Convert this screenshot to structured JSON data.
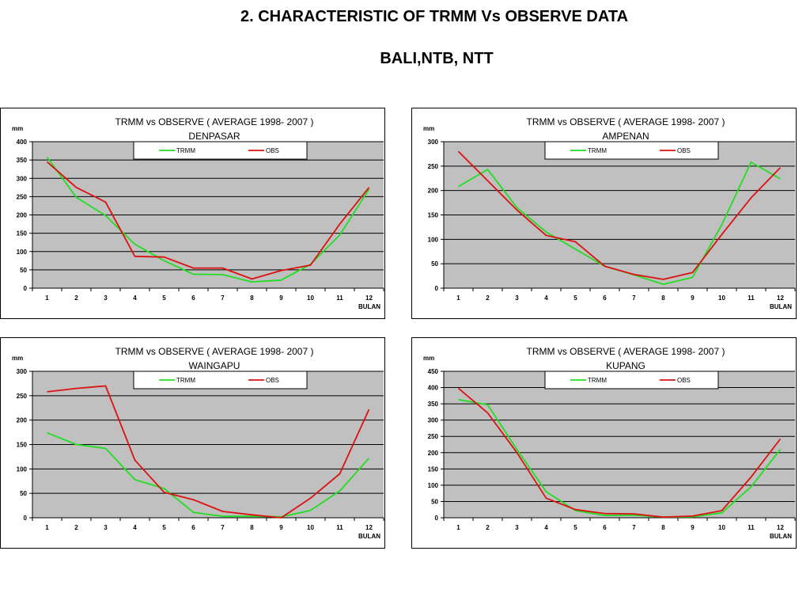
{
  "slide": {
    "title": "2.  CHARACTERISTIC OF TRMM Vs OBSERVE DATA",
    "subtitle": "BALI,NTB, NTT"
  },
  "colors": {
    "trmm": "#22dd22",
    "obs": "#dd1111",
    "plot_bg": "#c0c0c0"
  },
  "chart_data": [
    {
      "type": "line",
      "title": "TRMM  vs  OBSERVE  ( AVERAGE  1998- 2007 )",
      "subtitle": "DENPASAR",
      "ylabel": "mm",
      "xlabel": "BULAN",
      "categories": [
        "1",
        "2",
        "3",
        "4",
        "5",
        "6",
        "7",
        "8",
        "9",
        "10",
        "11",
        "12"
      ],
      "ylim": [
        0,
        400
      ],
      "yticks": [
        0,
        50,
        100,
        150,
        200,
        250,
        300,
        350,
        400
      ],
      "series": [
        {
          "name": "TRMM",
          "values": [
            358,
            248,
            198,
            120,
            75,
            38,
            37,
            17,
            22,
            65,
            145,
            270
          ]
        },
        {
          "name": "OBS",
          "values": [
            345,
            275,
            235,
            87,
            85,
            55,
            55,
            25,
            48,
            63,
            175,
            275
          ]
        }
      ],
      "legend": "top-center",
      "grid": true
    },
    {
      "type": "line",
      "title": "TRMM  vs  OBSERVE  ( AVERAGE  1998- 2007 )",
      "subtitle": "AMPENAN",
      "ylabel": "mm",
      "xlabel": "BULAN",
      "categories": [
        "1",
        "2",
        "3",
        "4",
        "5",
        "6",
        "7",
        "8",
        "9",
        "10",
        "11",
        "12"
      ],
      "ylim": [
        0,
        300
      ],
      "yticks": [
        0,
        50,
        100,
        150,
        200,
        250,
        300
      ],
      "series": [
        {
          "name": "TRMM",
          "values": [
            208,
            243,
            165,
            115,
            80,
            45,
            27,
            8,
            22,
            130,
            258,
            224
          ]
        },
        {
          "name": "OBS",
          "values": [
            280,
            220,
            160,
            108,
            95,
            45,
            28,
            18,
            32,
            110,
            185,
            247
          ]
        }
      ],
      "legend": "top-center",
      "grid": true
    },
    {
      "type": "line",
      "title": "TRMM  vs  OBSERVE  ( AVERAGE  1998- 2007 )",
      "subtitle": "WAINGAPU",
      "ylabel": "mm",
      "xlabel": "BULAN",
      "categories": [
        "1",
        "2",
        "3",
        "4",
        "5",
        "6",
        "7",
        "8",
        "9",
        "10",
        "11",
        "12"
      ],
      "ylim": [
        0,
        300
      ],
      "yticks": [
        0,
        50,
        100,
        150,
        200,
        250,
        300
      ],
      "series": [
        {
          "name": "TRMM",
          "values": [
            174,
            150,
            142,
            78,
            60,
            11,
            3,
            3,
            2,
            15,
            55,
            122
          ]
        },
        {
          "name": "OBS",
          "values": [
            258,
            265,
            270,
            118,
            52,
            37,
            13,
            6,
            0,
            40,
            90,
            222
          ]
        }
      ],
      "legend": "top-center",
      "grid": true
    },
    {
      "type": "line",
      "title": "TRMM  vs  OBSERVE  ( AVERAGE  1998- 2007 )",
      "subtitle": "KUPANG",
      "ylabel": "mm",
      "xlabel": "BULAN",
      "categories": [
        "1",
        "2",
        "3",
        "4",
        "5",
        "6",
        "7",
        "8",
        "9",
        "10",
        "11",
        "12"
      ],
      "ylim": [
        0,
        450
      ],
      "yticks": [
        0,
        50,
        100,
        150,
        200,
        250,
        300,
        350,
        400,
        450
      ],
      "series": [
        {
          "name": "TRMM",
          "values": [
            363,
            347,
            210,
            80,
            22,
            7,
            8,
            2,
            3,
            15,
            95,
            210
          ]
        },
        {
          "name": "OBS",
          "values": [
            398,
            322,
            200,
            60,
            25,
            13,
            12,
            2,
            5,
            22,
            125,
            242
          ]
        }
      ],
      "legend": "top-center",
      "grid": true
    }
  ]
}
